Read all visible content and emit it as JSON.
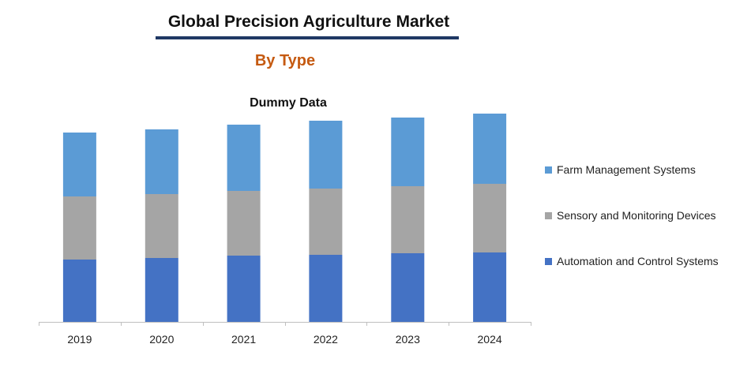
{
  "header": {
    "title": "Global Precision Agriculture Market",
    "subtitle": "By Type"
  },
  "chart_data": {
    "type": "bar",
    "stacked": true,
    "title": "Dummy Data",
    "xlabel": "",
    "ylabel": "",
    "categories": [
      "2019",
      "2020",
      "2021",
      "2022",
      "2023",
      "2024"
    ],
    "series": [
      {
        "name": "Automation and Control Systems",
        "color": "#4472c4",
        "values": [
          79,
          81,
          84,
          85,
          87,
          88
        ]
      },
      {
        "name": "Sensory and Monitoring Devices",
        "color": "#a5a5a5",
        "values": [
          80,
          81,
          82,
          84,
          85,
          87
        ]
      },
      {
        "name": "Farm Management Systems",
        "color": "#5b9bd5",
        "values": [
          81,
          82,
          84,
          86,
          87,
          89
        ]
      }
    ],
    "ylim": [
      0,
      265
    ],
    "grid": false,
    "legend_position": "right"
  }
}
